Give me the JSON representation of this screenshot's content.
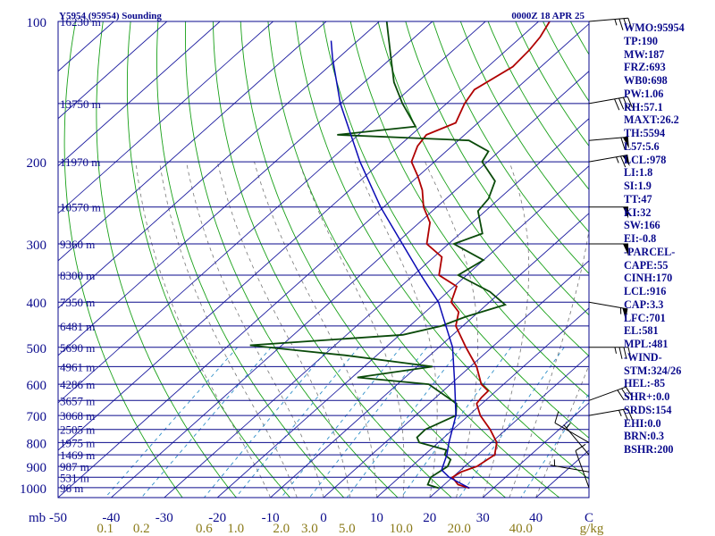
{
  "header": {
    "title": "Y5954 (95954) Sounding",
    "datetime": "0000Z 18 APR 25"
  },
  "chart_data": {
    "type": "line",
    "subtype": "skew-T log-P",
    "pressure_axis": {
      "label": "mb",
      "ticks": [
        100,
        200,
        300,
        400,
        500,
        600,
        700,
        800,
        900,
        1000
      ],
      "range": [
        100,
        1050
      ],
      "scale": "log"
    },
    "temperature_axis": {
      "ticks": [
        "-50",
        "-40",
        "-30",
        "-20",
        "-10",
        "0",
        "10",
        "20",
        "30",
        "40",
        "C"
      ],
      "range": [
        -50,
        50
      ]
    },
    "mixing_ratio_axis": {
      "ticks": [
        "0.1",
        "0.2",
        "0.6",
        "1.0",
        "2.0",
        "3.0",
        "5.0",
        "10.0",
        "20.0",
        "40.0",
        "g/kg"
      ],
      "values": [
        0.1,
        0.2,
        0.6,
        1.0,
        2.0,
        3.0,
        5.0,
        10.0,
        20.0,
        40.0
      ]
    },
    "height_levels": [
      {
        "p": 100,
        "label": "16230 m"
      },
      {
        "p": 150,
        "label": "13750 m"
      },
      {
        "p": 200,
        "label": "11970 m"
      },
      {
        "p": 250,
        "label": "10570 m"
      },
      {
        "p": 300,
        "label": "9360 m"
      },
      {
        "p": 350,
        "label": "8300 m"
      },
      {
        "p": 400,
        "label": "7350 m"
      },
      {
        "p": 450,
        "label": "6481 m"
      },
      {
        "p": 500,
        "label": "5690 m"
      },
      {
        "p": 550,
        "label": "4961 m"
      },
      {
        "p": 600,
        "label": "4286 m"
      },
      {
        "p": 650,
        "label": "3657 m"
      },
      {
        "p": 700,
        "label": "3068 m"
      },
      {
        "p": 750,
        "label": "2505 m"
      },
      {
        "p": 800,
        "label": "1975 m"
      },
      {
        "p": 850,
        "label": "1469 m"
      },
      {
        "p": 900,
        "label": "987 m"
      },
      {
        "p": 950,
        "label": "531 m"
      },
      {
        "p": 1000,
        "label": "96 m"
      }
    ],
    "series": [
      {
        "name": "temperature",
        "color": "#b00000",
        "points": [
          [
            1002,
            25.5
          ],
          [
            985,
            22.6
          ],
          [
            950,
            20.0
          ],
          [
            925,
            20.5
          ],
          [
            900,
            22.3
          ],
          [
            850,
            23.2
          ],
          [
            800,
            21.0
          ],
          [
            750,
            17.0
          ],
          [
            700,
            12.2
          ],
          [
            660,
            9.0
          ],
          [
            640,
            8.6
          ],
          [
            620,
            8.5
          ],
          [
            600,
            5.8
          ],
          [
            550,
            1.2
          ],
          [
            500,
            -4.9
          ],
          [
            450,
            -11.3
          ],
          [
            420,
            -13.7
          ],
          [
            400,
            -17.2
          ],
          [
            370,
            -19.5
          ],
          [
            350,
            -25.2
          ],
          [
            320,
            -28.5
          ],
          [
            300,
            -34.1
          ],
          [
            270,
            -38.0
          ],
          [
            250,
            -42.5
          ],
          [
            230,
            -46.3
          ],
          [
            215,
            -50.0
          ],
          [
            200,
            -54.3
          ],
          [
            185,
            -56.5
          ],
          [
            175,
            -57.2
          ],
          [
            165,
            -54.2
          ],
          [
            150,
            -56.6
          ],
          [
            140,
            -57.7
          ],
          [
            125,
            -55.3
          ],
          [
            115,
            -55.7
          ],
          [
            108,
            -56.4
          ],
          [
            100,
            -57.9
          ]
        ]
      },
      {
        "name": "dewpoint",
        "color": "#0a4a0a",
        "points": [
          [
            1002,
            19.7
          ],
          [
            985,
            16.9
          ],
          [
            950,
            15.9
          ],
          [
            900,
            16.8
          ],
          [
            870,
            15.9
          ],
          [
            850,
            13.8
          ],
          [
            830,
            13.1
          ],
          [
            800,
            6.4
          ],
          [
            780,
            4.9
          ],
          [
            750,
            4.8
          ],
          [
            700,
            7.6
          ],
          [
            660,
            5.2
          ],
          [
            600,
            -4.1
          ],
          [
            580,
            -19.0
          ],
          [
            550,
            -7.1
          ],
          [
            520,
            -26.0
          ],
          [
            505,
            -38.0
          ],
          [
            495,
            -46.0
          ],
          [
            470,
            -19.4
          ],
          [
            450,
            -14.0
          ],
          [
            430,
            -11.4
          ],
          [
            405,
            -6.5
          ],
          [
            395,
            -8.7
          ],
          [
            380,
            -12.1
          ],
          [
            350,
            -21.6
          ],
          [
            325,
            -20.0
          ],
          [
            300,
            -29.0
          ],
          [
            285,
            -25.8
          ],
          [
            255,
            -31.4
          ],
          [
            240,
            -32.0
          ],
          [
            220,
            -34.5
          ],
          [
            200,
            -41.0
          ],
          [
            190,
            -42.0
          ],
          [
            180,
            -48.0
          ],
          [
            175,
            -74.0
          ],
          [
            168,
            -61.0
          ],
          [
            150,
            -68.3
          ],
          [
            135,
            -74.4
          ],
          [
            120,
            -80.0
          ],
          [
            110,
            -84.1
          ],
          [
            100,
            -88.6
          ]
        ]
      },
      {
        "name": "parcel",
        "color": "#0a0ab4",
        "points": [
          [
            1002,
            25.5
          ],
          [
            950,
            19.4
          ],
          [
            916,
            16.4
          ],
          [
            850,
            14.2
          ],
          [
            800,
            12.0
          ],
          [
            700,
            7.6
          ],
          [
            600,
            0.8
          ],
          [
            500,
            -7.4
          ],
          [
            400,
            -19.6
          ],
          [
            350,
            -28.6
          ],
          [
            300,
            -38.7
          ],
          [
            250,
            -50.6
          ],
          [
            200,
            -64.0
          ],
          [
            150,
            -80.0
          ],
          [
            120,
            -91.0
          ],
          [
            110,
            -95.0
          ]
        ]
      }
    ],
    "wind_barbs": [
      {
        "p": 1000,
        "dir": 340,
        "kt": 10
      },
      {
        "p": 925,
        "dir": 280,
        "kt": 5
      },
      {
        "p": 850,
        "dir": 320,
        "kt": 5
      },
      {
        "p": 800,
        "dir": 300,
        "kt": 10
      },
      {
        "p": 700,
        "dir": 80,
        "kt": 25
      },
      {
        "p": 650,
        "dir": 70,
        "kt": 30
      },
      {
        "p": 500,
        "dir": 90,
        "kt": 35
      },
      {
        "p": 400,
        "dir": 100,
        "kt": 55
      },
      {
        "p": 300,
        "dir": 90,
        "kt": 50
      },
      {
        "p": 250,
        "dir": 90,
        "kt": 50
      },
      {
        "p": 200,
        "dir": 80,
        "kt": 65
      },
      {
        "p": 180,
        "dir": 85,
        "kt": 60
      },
      {
        "p": 150,
        "dir": 80,
        "kt": 40
      },
      {
        "p": 100,
        "dir": 85,
        "kt": 35
      }
    ],
    "colors": {
      "frame": "#0a0a8c",
      "isobar": "#0a0a8c",
      "isotherm": "#1e1ea0",
      "dry_adiabat": "#18a018",
      "moist_adiabat": "#777777",
      "mixing_ratio": "#2e8ec8",
      "bottom_labels": "#8a7a18"
    }
  },
  "indices": [
    "WMO:95954",
    "TP:190",
    "MW:187",
    "FRZ:693",
    "WB0:698",
    "PW:1.06",
    "RH:57.1",
    "MAXT:26.2",
    "TH:5594",
    "L57:5.6",
    "LCL:978",
    "LI:1.8",
    "SI:1.9",
    "TT:47",
    "KI:32",
    "SW:166",
    "EI:-0.8",
    "-PARCEL-",
    "CAPE:55",
    "CINH:170",
    "LCL:916",
    "CAP:3.3",
    "LFC:701",
    "EL:581",
    "MPL:481",
    "-WIND-",
    "STM:324/26",
    "HEL:-85",
    "SHR+:0.0",
    "SRDS:154",
    "EHI:0.0",
    "BRN:0.3",
    "BSHR:200"
  ]
}
